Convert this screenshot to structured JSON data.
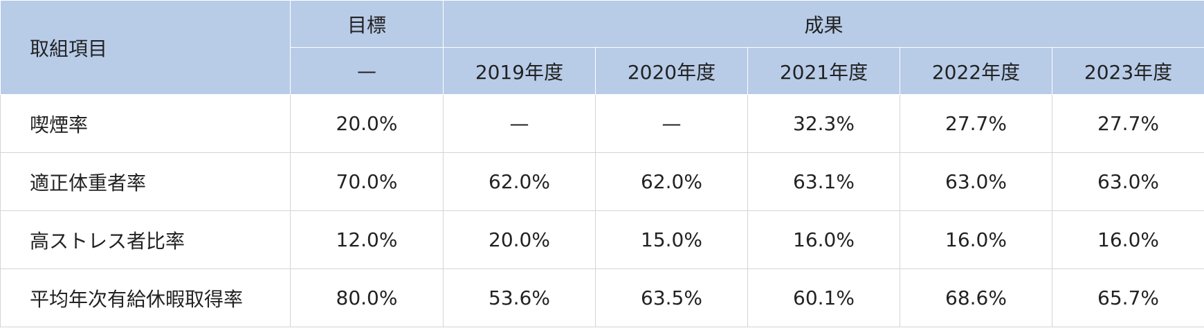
{
  "table": {
    "header": {
      "item": "取組項目",
      "target": "目標",
      "results": "成果",
      "target_sub": "—",
      "years": [
        "2019年度",
        "2020年度",
        "2021年度",
        "2022年度",
        "2023年度"
      ]
    },
    "rows": [
      [
        "喫煙率",
        "20.0%",
        "—",
        "—",
        "32.3%",
        "27.7%",
        "27.7%"
      ],
      [
        "適正体重者率",
        "70.0%",
        "62.0%",
        "62.0%",
        "63.1%",
        "63.0%",
        "63.0%"
      ],
      [
        "高ストレス者比率",
        "12.0%",
        "20.0%",
        "15.0%",
        "16.0%",
        "16.0%",
        "16.0%"
      ],
      [
        "平均年次有給休暇取得率",
        "80.0%",
        "53.6%",
        "63.5%",
        "60.1%",
        "68.6%",
        "65.7%"
      ]
    ]
  }
}
